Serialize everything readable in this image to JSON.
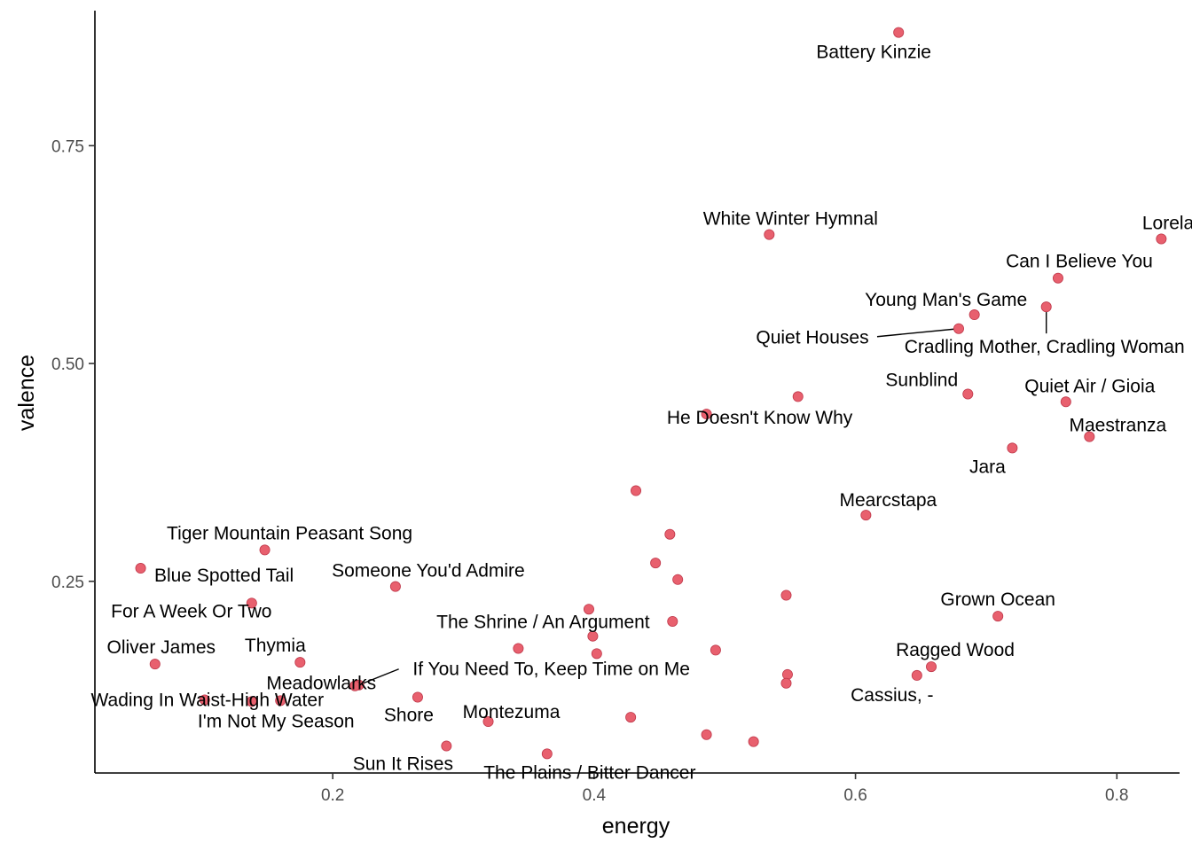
{
  "chart_data": {
    "type": "scatter",
    "xlabel": "energy",
    "ylabel": "valence",
    "xlim": [
      0.018,
      0.848
    ],
    "ylim": [
      0.03,
      0.905
    ],
    "x_ticks": [
      0.2,
      0.4,
      0.6,
      0.8
    ],
    "x_tick_labels": [
      "0.2",
      "0.4",
      "0.6",
      "0.8"
    ],
    "y_ticks": [
      0.25,
      0.5,
      0.75
    ],
    "y_tick_labels": [
      "0.25",
      "0.50",
      "0.75"
    ],
    "grid": false,
    "legend": "none",
    "point_color": "#e8606e",
    "points": [
      {
        "x": 0.633,
        "y": 0.88,
        "label": "Battery Kinzie"
      },
      {
        "x": 0.534,
        "y": 0.648,
        "label": "White Winter Hymnal"
      },
      {
        "x": 0.834,
        "y": 0.643,
        "label": "Lorelai"
      },
      {
        "x": 0.755,
        "y": 0.598,
        "label": "Can I Believe You"
      },
      {
        "x": 0.691,
        "y": 0.556,
        "label": "Young Man's Game"
      },
      {
        "x": 0.746,
        "y": 0.565,
        "label": "Cradling Mother, Cradling Woman"
      },
      {
        "x": 0.679,
        "y": 0.54,
        "label": "Quiet Houses"
      },
      {
        "x": 0.686,
        "y": 0.465,
        "label": "Sunblind"
      },
      {
        "x": 0.761,
        "y": 0.456,
        "label": "Quiet Air / Gioia"
      },
      {
        "x": 0.556,
        "y": 0.462,
        "label": ""
      },
      {
        "x": 0.486,
        "y": 0.442,
        "label": "He Doesn't Know Why"
      },
      {
        "x": 0.779,
        "y": 0.416,
        "label": "Maestranza"
      },
      {
        "x": 0.72,
        "y": 0.403,
        "label": "Jara"
      },
      {
        "x": 0.432,
        "y": 0.354,
        "label": ""
      },
      {
        "x": 0.608,
        "y": 0.326,
        "label": "Mearcstapa"
      },
      {
        "x": 0.458,
        "y": 0.304,
        "label": ""
      },
      {
        "x": 0.148,
        "y": 0.286,
        "label": "Tiger Mountain Peasant Song"
      },
      {
        "x": 0.447,
        "y": 0.271,
        "label": ""
      },
      {
        "x": 0.053,
        "y": 0.265,
        "label": "Blue Spotted Tail"
      },
      {
        "x": 0.248,
        "y": 0.244,
        "label": "Someone You'd Admire"
      },
      {
        "x": 0.464,
        "y": 0.252,
        "label": ""
      },
      {
        "x": 0.547,
        "y": 0.234,
        "label": ""
      },
      {
        "x": 0.138,
        "y": 0.225,
        "label": "For A Week Or Two"
      },
      {
        "x": 0.396,
        "y": 0.218,
        "label": ""
      },
      {
        "x": 0.709,
        "y": 0.21,
        "label": "Grown Ocean"
      },
      {
        "x": 0.46,
        "y": 0.204,
        "label": ""
      },
      {
        "x": 0.399,
        "y": 0.187,
        "label": "The Shrine / An Argument"
      },
      {
        "x": 0.342,
        "y": 0.173,
        "label": ""
      },
      {
        "x": 0.402,
        "y": 0.167,
        "label": ""
      },
      {
        "x": 0.493,
        "y": 0.171,
        "label": ""
      },
      {
        "x": 0.658,
        "y": 0.152,
        "label": "Ragged Wood"
      },
      {
        "x": 0.064,
        "y": 0.155,
        "label": "Oliver James"
      },
      {
        "x": 0.175,
        "y": 0.157,
        "label": "Thymia"
      },
      {
        "x": 0.22,
        "y": 0.131,
        "label": "If You Need To, Keep Time on Me"
      },
      {
        "x": 0.548,
        "y": 0.143,
        "label": ""
      },
      {
        "x": 0.647,
        "y": 0.142,
        "label": "Cassius, -"
      },
      {
        "x": 0.547,
        "y": 0.133,
        "label": ""
      },
      {
        "x": 0.217,
        "y": 0.13,
        "label": "Meadowlarks"
      },
      {
        "x": 0.102,
        "y": 0.114,
        "label": "Wading In Waist-High Water"
      },
      {
        "x": 0.138,
        "y": 0.112,
        "label": ""
      },
      {
        "x": 0.16,
        "y": 0.113,
        "label": "I'm Not My Season"
      },
      {
        "x": 0.265,
        "y": 0.117,
        "label": "Shore"
      },
      {
        "x": 0.319,
        "y": 0.089,
        "label": "Montezuma"
      },
      {
        "x": 0.428,
        "y": 0.094,
        "label": ""
      },
      {
        "x": 0.287,
        "y": 0.061,
        "label": "Sun It Rises"
      },
      {
        "x": 0.364,
        "y": 0.052,
        "label": "The Plains / Bitter Dancer"
      },
      {
        "x": 0.486,
        "y": 0.074,
        "label": ""
      },
      {
        "x": 0.522,
        "y": 0.066,
        "label": ""
      }
    ]
  }
}
